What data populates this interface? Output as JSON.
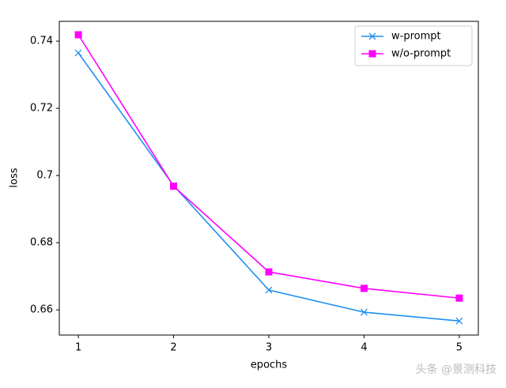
{
  "chart_data": {
    "type": "line",
    "x_label": "epochs",
    "y_label": "loss",
    "x": [
      1,
      2,
      3,
      4,
      5
    ],
    "series": [
      {
        "name": "w-prompt",
        "color": "#1f8ff0",
        "marker": "x",
        "values": [
          0.7365,
          0.697,
          0.6659,
          0.6593,
          0.6567
        ]
      },
      {
        "name": "w/o-prompt",
        "color": "#ff00ff",
        "marker": "square",
        "values": [
          0.7419,
          0.6968,
          0.6713,
          0.6664,
          0.6635
        ]
      }
    ],
    "xlim": [
      0.8,
      5.2
    ],
    "xticks": [
      1,
      2,
      3,
      4,
      5
    ],
    "ylim": [
      0.6525,
      0.7459
    ],
    "yticks": [
      0.66,
      0.68,
      0.7,
      0.72,
      0.74
    ],
    "legend": "upper right",
    "grid": false,
    "watermark": "头条 @景测科技"
  }
}
